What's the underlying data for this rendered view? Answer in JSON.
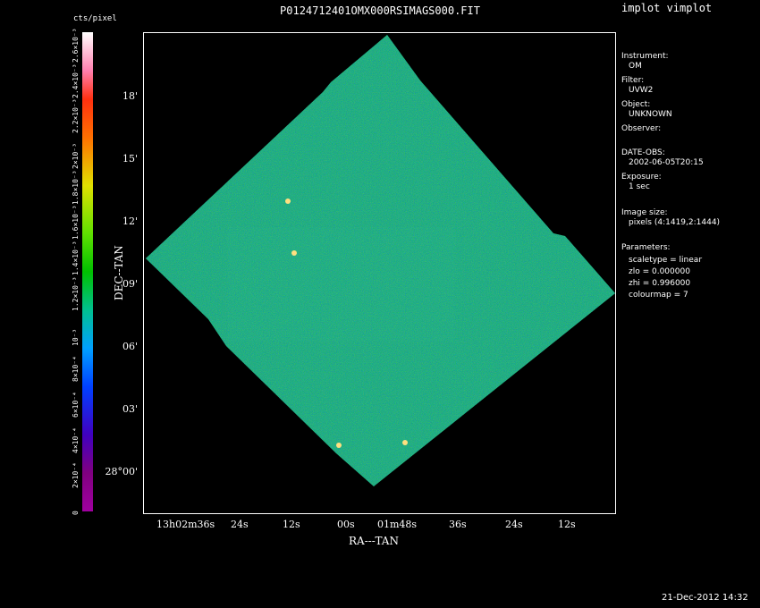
{
  "title": "P0124712401OMX000RSIMAGS000.FIT",
  "app_title": "implot vimplot",
  "colorbar": {
    "units": "cts/pixel",
    "ticks": [
      "0",
      "2×10⁻⁴",
      "4×10⁻⁴",
      "6×10⁻⁴",
      "8×10⁻⁴",
      "10⁻³",
      "1.2×10⁻³",
      "1.4×10⁻³",
      "1.6×10⁻³",
      "1.8×10⁻³",
      "2×10⁻³",
      "2.2×10⁻³",
      "2.4×10⁻³",
      "2.6×10⁻³"
    ]
  },
  "chart_data": {
    "type": "heatmap",
    "title": "P0124712401OMX000RSIMAGS000.FIT",
    "xlabel": "RA---TAN",
    "ylabel": "DEC--TAN",
    "x_ticks": [
      "13h02m36s",
      "24s",
      "12s",
      "00s",
      "01m48s",
      "36s",
      "24s",
      "12s"
    ],
    "y_ticks": [
      "28°00'",
      "03'",
      "06'",
      "09'",
      "12'",
      "15'",
      "18'"
    ],
    "zlim": [
      0,
      0.0026
    ],
    "colorbar_label": "cts/pixel",
    "grid": false
  },
  "info": {
    "instrument_label": "Instrument:",
    "instrument": "OM",
    "filter_label": "Filter:",
    "filter": "UVW2",
    "object_label": "Object:",
    "object": "UNKNOWN",
    "observer_label": "Observer:",
    "date_obs_label": "DATE-OBS:",
    "date_obs": "2002-06-05T20:15",
    "exposure_label": "Exposure:",
    "exposure": "1 sec",
    "image_size_label": "Image size:",
    "image_size": "pixels (4:1419,2:1444)",
    "parameters_label": "Parameters:",
    "scaletype": "scaletype = linear",
    "zlo": "zlo = 0.000000",
    "zhi": "zhi = 0.996000",
    "colourmap": "colourmap =   7"
  },
  "timestamp": "21-Dec-2012 14:32"
}
